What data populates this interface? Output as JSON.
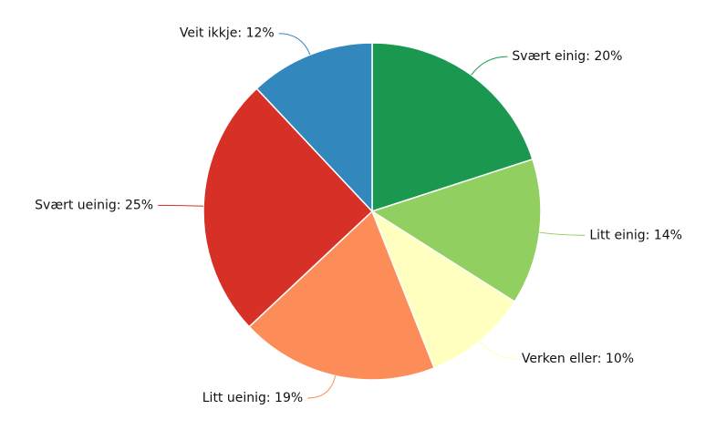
{
  "chart_data": {
    "type": "pie",
    "values": [
      20,
      14,
      10,
      19,
      25,
      12
    ],
    "value_labels": [
      "Svært einig: 20%",
      "Litt einig: 14%",
      "Verken eller: 10%",
      "Litt ueinig: 19%",
      "Svært ueinig: 25%",
      "Veit ikkje: 12%"
    ],
    "colors": [
      "#1a9850",
      "#91cf60",
      "#ffffbf",
      "#fc8d59",
      "#d73027",
      "#3288bd"
    ]
  }
}
